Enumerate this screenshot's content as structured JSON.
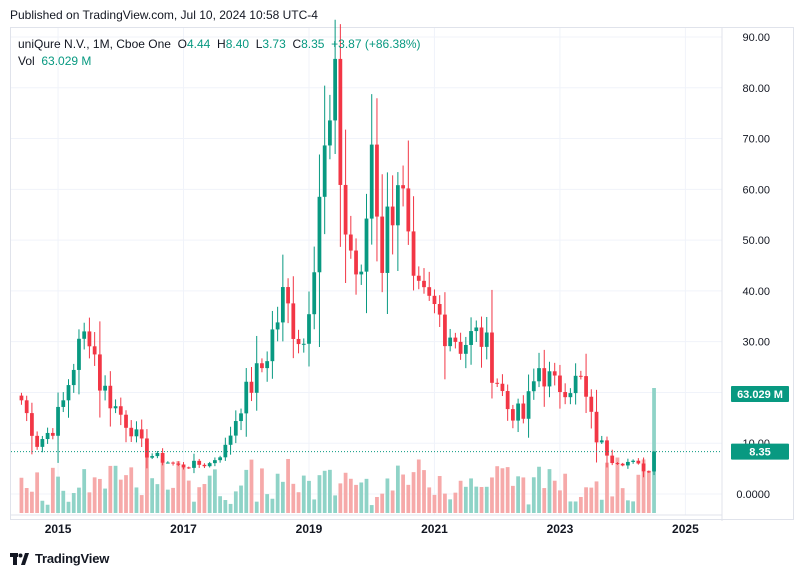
{
  "header": {
    "published": "Published on TradingView.com, Jul 10, 2024 10:58 UTC-4"
  },
  "legend": {
    "symbol": "uniQure N.V., 1M, Cboe One",
    "open_label": "O",
    "open": "4.44",
    "high_label": "H",
    "high": "8.40",
    "low_label": "L",
    "low": "3.73",
    "close_label": "C",
    "close": "8.35",
    "change": "+3.87 (+86.38%)",
    "vol_label": "Vol",
    "vol": "63.029 M"
  },
  "badges": {
    "volume": "63.029 M",
    "price": "8.35"
  },
  "footer": {
    "brand": "TradingView"
  },
  "colors": {
    "up": "#089981",
    "down": "#f23645",
    "vol_up": "#8fd3c7",
    "vol_down": "#f6a9a9",
    "grid": "#f0f3fa",
    "axis_text": "#131722",
    "dotted": "#089981"
  },
  "chart_data": {
    "type": "candlestick",
    "title": "uniQure N.V., 1M, Cboe One",
    "x_tick_labels": [
      "2015",
      "2017",
      "2019",
      "2021",
      "2023",
      "2025"
    ],
    "y_tick_labels": [
      "0.0000",
      "10.00",
      "20.00",
      "30.00",
      "40.00",
      "50.00",
      "60.00",
      "70.00",
      "80.00",
      "90.00"
    ],
    "y_ticks": [
      0,
      10,
      20,
      30,
      40,
      50,
      60,
      70,
      80,
      90
    ],
    "ylim": [
      -4,
      92
    ],
    "x_range": [
      "2014-04",
      "2025-08"
    ],
    "last_close": 8.35,
    "last_volume_label": "63.029 M",
    "anchors": [
      {
        "t": "2014-06",
        "c": 18.5
      },
      {
        "t": "2014-09",
        "c": 10
      },
      {
        "t": "2014-12",
        "c": 13
      },
      {
        "t": "2015-02",
        "c": 18
      },
      {
        "t": "2015-04",
        "c": 26
      },
      {
        "t": "2015-07",
        "c": 33
      },
      {
        "t": "2015-09",
        "c": 22
      },
      {
        "t": "2015-12",
        "c": 17
      },
      {
        "t": "2016-03",
        "c": 13
      },
      {
        "t": "2016-06",
        "c": 8
      },
      {
        "t": "2016-12",
        "c": 5.5
      },
      {
        "t": "2017-06",
        "c": 6
      },
      {
        "t": "2017-09",
        "c": 9
      },
      {
        "t": "2017-12",
        "c": 18
      },
      {
        "t": "2018-04",
        "c": 25
      },
      {
        "t": "2018-08",
        "c": 38
      },
      {
        "t": "2018-12",
        "c": 30
      },
      {
        "t": "2019-03",
        "c": 60
      },
      {
        "t": "2019-06",
        "c": 76
      },
      {
        "t": "2019-08",
        "c": 52
      },
      {
        "t": "2019-11",
        "c": 40
      },
      {
        "t": "2020-01",
        "c": 70
      },
      {
        "t": "2020-03",
        "c": 47
      },
      {
        "t": "2020-06",
        "c": 65
      },
      {
        "t": "2020-09",
        "c": 38
      },
      {
        "t": "2021-01",
        "c": 36
      },
      {
        "t": "2021-06",
        "c": 30
      },
      {
        "t": "2021-10",
        "c": 31
      },
      {
        "t": "2022-03",
        "c": 17
      },
      {
        "t": "2022-06",
        "c": 15
      },
      {
        "t": "2022-09",
        "c": 25
      },
      {
        "t": "2022-12",
        "c": 21
      },
      {
        "t": "2023-02",
        "c": 22
      },
      {
        "t": "2023-05",
        "c": 22
      },
      {
        "t": "2023-08",
        "c": 11
      },
      {
        "t": "2023-11",
        "c": 7
      },
      {
        "t": "2024-03",
        "c": 6
      },
      {
        "t": "2024-06",
        "c": 4.44
      }
    ],
    "last_candle": {
      "t": "2024-07",
      "o": 4.44,
      "h": 8.4,
      "l": 3.73,
      "c": 8.35,
      "v_m": 63.029
    },
    "volume_scale_max_m": 63.029
  }
}
